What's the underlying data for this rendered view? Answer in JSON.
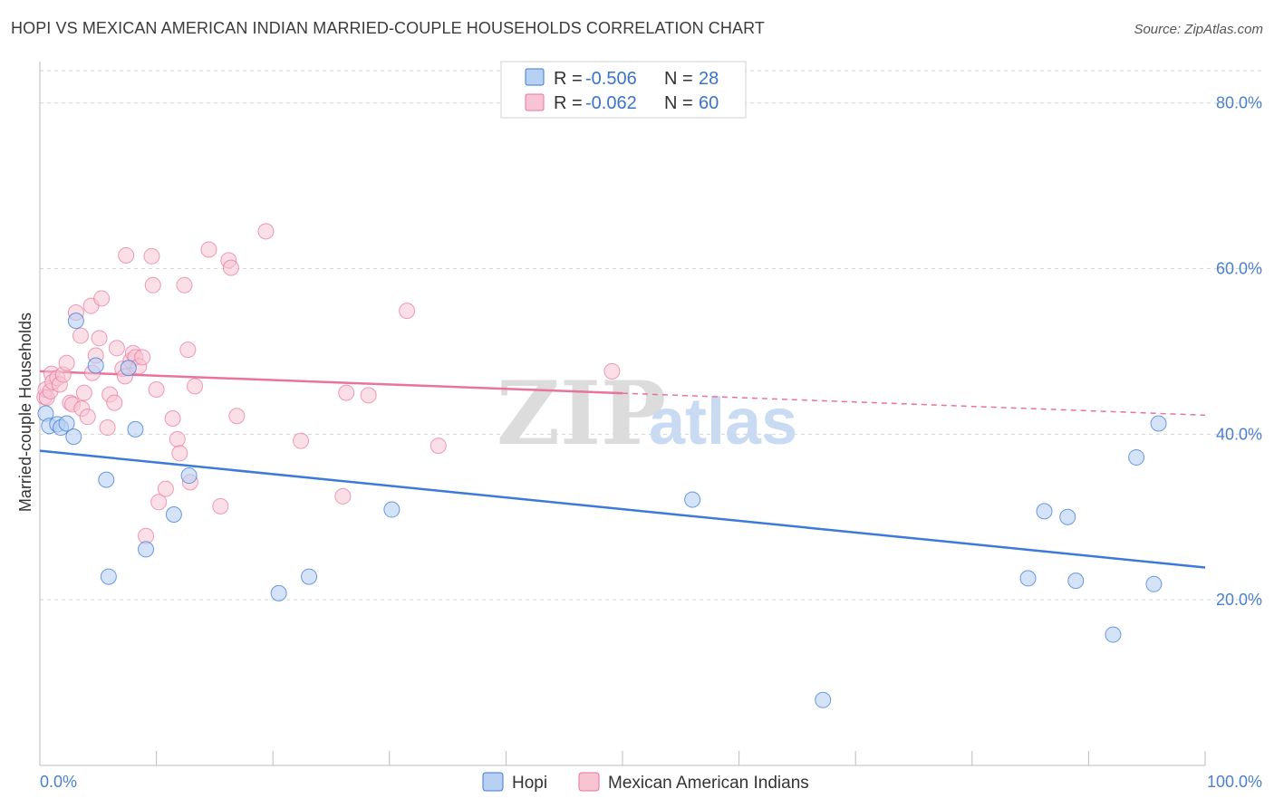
{
  "title": "HOPI VS MEXICAN AMERICAN INDIAN MARRIED-COUPLE HOUSEHOLDS CORRELATION CHART",
  "source": "Source: ZipAtlas.com",
  "watermark": {
    "zip": "ZIP",
    "atlas": "atlas"
  },
  "colors": {
    "hopi": "#3d7ad6",
    "hopi_fill": "#b8d0f3",
    "mexican": "#e8739c",
    "mexican_fill": "#f7c4d4",
    "tick": "#4a7fd0",
    "grid": "#d6d6d6"
  },
  "legend": {
    "rows": [
      {
        "r_label": "R =",
        "r_value": "-0.506",
        "n_label": "N =",
        "n_value": "28"
      },
      {
        "r_label": "R =",
        "r_value": "-0.062",
        "n_label": "N =",
        "n_value": "60"
      }
    ]
  },
  "chart_data": {
    "type": "scatter",
    "xlabel": "",
    "ylabel": "Married-couple Households",
    "xlim": [
      0,
      100
    ],
    "ylim": [
      0,
      85
    ],
    "x_tick_labels": [
      "0.0%",
      "100.0%"
    ],
    "y_ticks": [
      20,
      40,
      60,
      80
    ],
    "y_tick_labels": [
      "20.0%",
      "40.0%",
      "60.0%",
      "80.0%"
    ],
    "series": [
      {
        "name": "Hopi",
        "points": [
          [
            0.5,
            42.5
          ],
          [
            0.8,
            41.0
          ],
          [
            1.5,
            41.2
          ],
          [
            1.8,
            40.8
          ],
          [
            2.3,
            41.3
          ],
          [
            2.9,
            39.7
          ],
          [
            3.1,
            53.7
          ],
          [
            4.8,
            48.3
          ],
          [
            5.7,
            34.5
          ],
          [
            5.9,
            22.8
          ],
          [
            7.6,
            48.0
          ],
          [
            8.2,
            40.6
          ],
          [
            9.1,
            26.1
          ],
          [
            11.5,
            30.3
          ],
          [
            12.8,
            35.0
          ],
          [
            20.5,
            20.8
          ],
          [
            23.1,
            22.8
          ],
          [
            30.2,
            30.9
          ],
          [
            56.0,
            32.1
          ],
          [
            67.2,
            7.9
          ],
          [
            84.8,
            22.6
          ],
          [
            86.2,
            30.7
          ],
          [
            88.2,
            30.0
          ],
          [
            88.9,
            22.3
          ],
          [
            92.1,
            15.8
          ],
          [
            94.1,
            37.2
          ],
          [
            95.6,
            21.9
          ],
          [
            96.0,
            41.3
          ]
        ],
        "trend": {
          "x": [
            0,
            100
          ],
          "y": [
            38.0,
            23.9
          ]
        }
      },
      {
        "name": "Mexican American Indians",
        "points": [
          [
            0.4,
            44.5
          ],
          [
            0.5,
            45.4
          ],
          [
            0.6,
            44.4
          ],
          [
            0.9,
            45.2
          ],
          [
            1.0,
            47.3
          ],
          [
            1.1,
            46.3
          ],
          [
            1.5,
            46.8
          ],
          [
            1.7,
            46.0
          ],
          [
            2.0,
            47.2
          ],
          [
            2.3,
            48.6
          ],
          [
            2.6,
            43.8
          ],
          [
            2.8,
            43.6
          ],
          [
            3.1,
            54.7
          ],
          [
            3.5,
            51.9
          ],
          [
            3.6,
            43.1
          ],
          [
            3.8,
            45.0
          ],
          [
            4.1,
            42.1
          ],
          [
            4.4,
            55.5
          ],
          [
            4.5,
            47.4
          ],
          [
            4.8,
            49.5
          ],
          [
            5.1,
            51.6
          ],
          [
            5.3,
            56.4
          ],
          [
            5.8,
            40.8
          ],
          [
            6.0,
            44.8
          ],
          [
            6.4,
            43.8
          ],
          [
            6.6,
            50.4
          ],
          [
            7.1,
            47.9
          ],
          [
            7.3,
            47.0
          ],
          [
            7.4,
            61.6
          ],
          [
            7.8,
            48.9
          ],
          [
            8.0,
            49.8
          ],
          [
            8.2,
            49.3
          ],
          [
            8.5,
            48.2
          ],
          [
            8.8,
            49.3
          ],
          [
            9.1,
            27.7
          ],
          [
            9.6,
            61.5
          ],
          [
            9.7,
            58.0
          ],
          [
            10.0,
            45.4
          ],
          [
            10.2,
            31.8
          ],
          [
            10.8,
            33.4
          ],
          [
            11.4,
            41.9
          ],
          [
            11.8,
            39.4
          ],
          [
            12.0,
            37.7
          ],
          [
            12.4,
            58.0
          ],
          [
            12.7,
            50.2
          ],
          [
            12.9,
            34.2
          ],
          [
            13.3,
            45.8
          ],
          [
            14.5,
            62.3
          ],
          [
            15.5,
            31.3
          ],
          [
            16.2,
            61.0
          ],
          [
            16.4,
            60.1
          ],
          [
            16.9,
            42.2
          ],
          [
            19.4,
            64.5
          ],
          [
            22.4,
            39.2
          ],
          [
            26.0,
            32.5
          ],
          [
            26.3,
            45.0
          ],
          [
            28.2,
            44.7
          ],
          [
            31.5,
            54.9
          ],
          [
            34.2,
            38.6
          ],
          [
            49.1,
            47.6
          ]
        ],
        "trend": {
          "x": [
            0,
            100
          ],
          "y": [
            47.6,
            42.3
          ],
          "solid_until_x": 50
        }
      }
    ]
  },
  "bottom_legend": {
    "items": [
      "Hopi",
      "Mexican American Indians"
    ]
  }
}
